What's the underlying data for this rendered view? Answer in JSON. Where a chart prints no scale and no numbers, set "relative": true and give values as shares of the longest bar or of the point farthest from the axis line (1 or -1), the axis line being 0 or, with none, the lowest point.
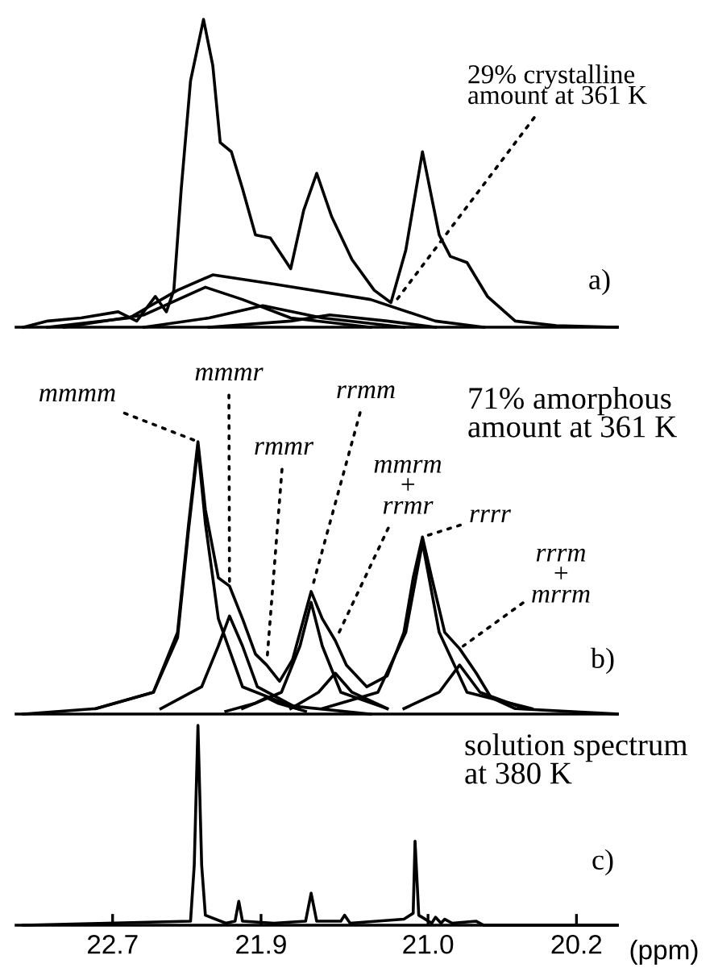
{
  "chart_data": [
    {
      "type": "line",
      "relative": true,
      "xlim": [
        23.22,
        19.98
      ],
      "tick_labels": false,
      "series": [
        {
          "color": "#000000",
          "x": [
            23.18,
            23.05,
            22.87,
            22.67,
            22.57,
            22.47,
            22.41,
            22.37,
            22.33,
            22.28,
            22.21,
            22.16,
            22.12,
            22.06,
            22.0,
            21.93,
            21.85,
            21.74,
            21.67,
            21.6,
            21.52,
            21.41,
            21.29,
            21.2,
            21.12,
            21.03,
            20.94,
            20.88,
            20.79,
            20.68,
            20.53,
            20.31,
            19.98
          ],
          "values": [
            0,
            0.02,
            0.03,
            0.05,
            0.02,
            0.1,
            0.05,
            0.12,
            0.45,
            0.8,
            1.0,
            0.85,
            0.6,
            0.57,
            0.45,
            0.3,
            0.29,
            0.19,
            0.38,
            0.5,
            0.36,
            0.22,
            0.12,
            0.08,
            0.25,
            0.57,
            0.3,
            0.23,
            0.21,
            0.1,
            0.02,
            0.005,
            0
          ]
        },
        {
          "color": "#000000",
          "x": [
            23.05,
            22.61,
            22.35,
            22.16,
            21.83,
            21.31,
            20.96,
            20.7
          ],
          "values": [
            0,
            0.03,
            0.12,
            0.17,
            0.14,
            0.09,
            0.02,
            0
          ]
        },
        {
          "color": "#000000",
          "x": [
            22.96,
            22.53,
            22.2,
            22.0,
            21.74,
            21.31
          ],
          "values": [
            0,
            0.04,
            0.13,
            0.09,
            0.03,
            0
          ]
        },
        {
          "color": "#000000",
          "x": [
            22.53,
            22.18,
            21.89,
            21.57,
            21.13
          ],
          "values": [
            0,
            0.03,
            0.07,
            0.03,
            0
          ]
        },
        {
          "color": "#000000",
          "x": [
            22.18,
            21.74,
            21.53,
            21.22,
            20.96
          ],
          "values": [
            0,
            0.02,
            0.04,
            0.02,
            0
          ]
        }
      ],
      "annotations": [
        {
          "text": "29% crystalline\namount at 361 K",
          "x": 21.18,
          "y": 0.08
        },
        "a)"
      ]
    },
    {
      "type": "line",
      "relative": true,
      "xlim": [
        23.22,
        19.98
      ],
      "tick_labels": false,
      "series": [
        {
          "color": "#000000",
          "x": [
            23.18,
            22.79,
            22.48,
            22.35,
            22.29,
            22.24,
            22.2,
            22.13,
            22.07,
            22.0,
            21.93,
            21.87,
            21.8,
            21.73,
            21.67,
            21.63,
            21.57,
            21.5,
            21.44,
            21.33,
            21.22,
            21.13,
            21.08,
            21.03,
            20.98,
            20.91,
            20.83,
            20.74,
            20.66,
            20.53,
            19.98
          ],
          "values": [
            0,
            0.02,
            0.08,
            0.3,
            0.7,
            1.0,
            0.75,
            0.5,
            0.47,
            0.35,
            0.22,
            0.18,
            0.12,
            0.2,
            0.35,
            0.45,
            0.35,
            0.27,
            0.18,
            0.1,
            0.14,
            0.3,
            0.5,
            0.65,
            0.5,
            0.3,
            0.24,
            0.15,
            0.06,
            0.02,
            0
          ]
        },
        {
          "color": "#000000",
          "x": [
            22.79,
            22.48,
            22.35,
            22.29,
            22.24,
            22.2,
            22.13,
            22.0,
            21.74,
            21.31
          ],
          "values": [
            0.02,
            0.08,
            0.28,
            0.68,
            0.98,
            0.7,
            0.35,
            0.1,
            0.03,
            0
          ]
        },
        {
          "color": "#000000",
          "x": [
            22.44,
            22.22,
            22.13,
            22.07,
            22.0,
            21.92,
            21.7
          ],
          "values": [
            0.02,
            0.1,
            0.25,
            0.36,
            0.25,
            0.1,
            0.02
          ]
        },
        {
          "color": "#000000",
          "x": [
            22.09,
            21.93,
            21.87,
            21.81,
            21.66
          ],
          "values": [
            0.01,
            0.04,
            0.06,
            0.04,
            0.01
          ]
        },
        {
          "color": "#000000",
          "x": [
            22.0,
            21.79,
            21.69,
            21.63,
            21.57,
            21.47,
            21.22
          ],
          "values": [
            0.02,
            0.08,
            0.25,
            0.41,
            0.25,
            0.08,
            0.02
          ]
        },
        {
          "color": "#000000",
          "x": [
            21.74,
            21.59,
            21.5,
            21.41,
            21.22
          ],
          "values": [
            0.02,
            0.08,
            0.15,
            0.08,
            0.02
          ]
        },
        {
          "color": "#000000",
          "x": [
            21.57,
            21.27,
            21.12,
            21.03,
            20.94,
            20.79,
            20.44
          ],
          "values": [
            0.02,
            0.08,
            0.3,
            0.63,
            0.3,
            0.08,
            0.02
          ]
        },
        {
          "color": "#000000",
          "x": [
            21.13,
            20.94,
            20.83,
            20.72,
            20.48
          ],
          "values": [
            0.02,
            0.08,
            0.18,
            0.08,
            0.02
          ]
        }
      ],
      "annotations": [
        {
          "text": "mmmm",
          "x": 22.24,
          "y": 1.0
        },
        {
          "text": "mmmr",
          "x": 22.07,
          "y": 0.47
        },
        {
          "text": "rmmr",
          "x": 21.87,
          "y": 0.18
        },
        {
          "text": "rrmm",
          "x": 21.63,
          "y": 0.45
        },
        {
          "text": "mmrm\n+\nrrmr",
          "x": 21.5,
          "y": 0.27
        },
        {
          "text": "rrrr",
          "x": 21.03,
          "y": 0.65
        },
        {
          "text": "rrrm\n+\nmrrm",
          "x": 20.83,
          "y": 0.24
        },
        "71% amorphous\namount at 361 K",
        "b)"
      ]
    },
    {
      "type": "line",
      "relative": true,
      "xlim": [
        23.22,
        19.98
      ],
      "tick_labels": "x",
      "xlabel": "(ppm)",
      "xticks": [
        22.7,
        21.9,
        {
          "value": 21.0,
          "label": "21.0"
        },
        20.2
      ],
      "series": [
        {
          "color": "#000000",
          "x": [
            23.18,
            22.28,
            22.26,
            22.24,
            22.22,
            22.2,
            22.09,
            22.04,
            22.02,
            22.0,
            21.83,
            21.66,
            21.63,
            21.6,
            21.47,
            21.45,
            21.42,
            21.13,
            21.08,
            21.07,
            21.05,
            20.98,
            20.96,
            20.93,
            20.91,
            20.87,
            20.74,
            20.7,
            19.98
          ],
          "values": [
            0,
            0.02,
            0.3,
            1.0,
            0.3,
            0.05,
            0.01,
            0.02,
            0.12,
            0.02,
            0.01,
            0.02,
            0.16,
            0.02,
            0.02,
            0.05,
            0.01,
            0.03,
            0.06,
            0.42,
            0.05,
            0.01,
            0.04,
            0.01,
            0.03,
            0.01,
            0.02,
            0,
            0
          ]
        }
      ],
      "annotations": [
        "solution spectrum\nat 380 K",
        "c)"
      ]
    }
  ]
}
